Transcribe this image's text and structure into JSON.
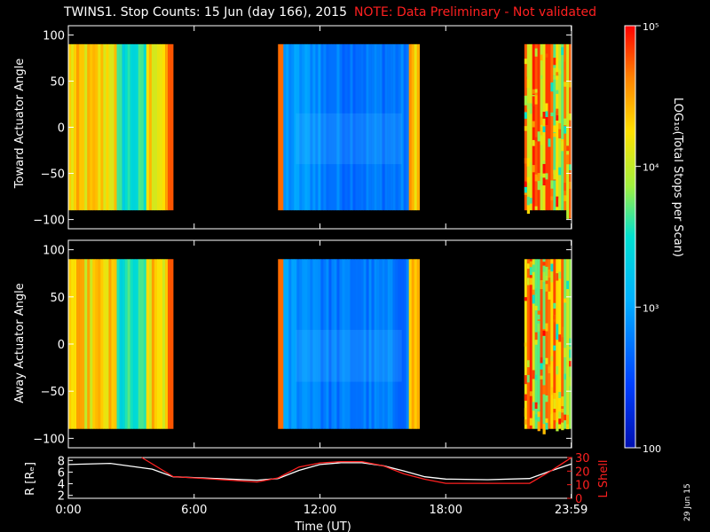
{
  "title": {
    "main": "TWINS1. Stop Counts: 15 Jun (day 166), 2015",
    "note": "NOTE: Data Preliminary - Not validated",
    "note_color": "#ff2020"
  },
  "stamp": "29 Jun 15",
  "colors": {
    "axis": "#ffffff",
    "lshell": "#ff2020",
    "radius": "#ffffff"
  },
  "chart_data": [
    {
      "type": "heatmap",
      "name": "toward",
      "ylabel": "Toward Actuator Angle",
      "ylim": [
        -110,
        110
      ],
      "yticks": [
        100,
        50,
        0,
        -50,
        -100
      ],
      "ytick_labels": [
        "100",
        "50",
        "0",
        "−50",
        "−100"
      ],
      "xlim": [
        0,
        24
      ],
      "data_extent": [
        -90,
        90
      ],
      "segments": [
        {
          "start": 0.0,
          "end": 5.0,
          "profile": "high"
        },
        {
          "start": 10.0,
          "end": 16.75,
          "profile": "low"
        },
        {
          "start": 21.75,
          "end": 24.0,
          "profile": "noisy"
        }
      ]
    },
    {
      "type": "heatmap",
      "name": "away",
      "ylabel": "Away Actuator Angle",
      "ylim": [
        -110,
        110
      ],
      "yticks": [
        100,
        50,
        0,
        -50,
        -100
      ],
      "ytick_labels": [
        "100",
        "50",
        "0",
        "−50",
        "−100"
      ],
      "xlim": [
        0,
        24
      ],
      "data_extent": [
        -90,
        90
      ],
      "segments": [
        {
          "start": 0.0,
          "end": 5.0,
          "profile": "high"
        },
        {
          "start": 10.0,
          "end": 16.75,
          "profile": "low"
        },
        {
          "start": 21.75,
          "end": 24.0,
          "profile": "noisy"
        }
      ]
    },
    {
      "type": "line",
      "name": "orbit",
      "ylabel_left": "R [Rₑ]",
      "ylabel_right": "L Shell",
      "xlabel": "Time (UT)",
      "xlim": [
        0,
        24
      ],
      "xticks": [
        0,
        6,
        12,
        18,
        23.983
      ],
      "xtick_labels": [
        "0:00",
        "6:00",
        "12:00",
        "18:00",
        "23:59"
      ],
      "ylim_left": [
        1.5,
        8.5
      ],
      "yticks_left": [
        2,
        4,
        6,
        8
      ],
      "ytick_labels_left": [
        "2",
        "4",
        "6",
        "8"
      ],
      "ylim_right": [
        0,
        30
      ],
      "yticks_right": [
        0,
        10,
        20,
        30
      ],
      "ytick_labels_right": [
        "0",
        "10",
        "20",
        "30"
      ],
      "series": [
        {
          "axis": "left",
          "x": [
            0,
            2,
            4,
            5,
            7,
            9,
            10,
            11,
            12,
            13,
            14,
            15,
            16,
            17,
            18,
            20,
            22,
            23,
            24
          ],
          "y": [
            7.3,
            7.5,
            6.5,
            5.2,
            4.9,
            4.6,
            4.9,
            6.3,
            7.3,
            7.6,
            7.6,
            7.1,
            6.2,
            5.2,
            4.8,
            4.7,
            4.9,
            6.2,
            7.4
          ]
        },
        {
          "axis": "right",
          "x": [
            3.5,
            5,
            7,
            9,
            10,
            11,
            12,
            13,
            14,
            15,
            16,
            17,
            18,
            20,
            22,
            23,
            24
          ],
          "y": [
            30,
            16,
            14,
            12,
            15,
            23,
            26,
            27,
            27,
            24,
            18,
            14,
            11,
            11,
            11,
            20,
            30
          ]
        }
      ]
    },
    {
      "type": "colorbar",
      "name": "colorbar",
      "label": "LOG₁₀(Total Stops per Scan)",
      "scale": "log",
      "range": [
        100,
        100000
      ],
      "tick_values": [
        100000,
        10000,
        1000,
        100
      ],
      "tick_labels": [
        "10⁵",
        "10⁴",
        "10³",
        "100"
      ]
    }
  ]
}
